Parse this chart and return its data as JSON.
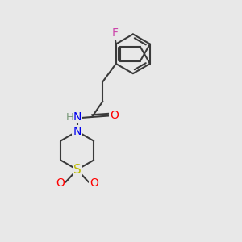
{
  "background_color": "#e8e8e8",
  "bond_color": "#3a3a3a",
  "bond_width": 1.5,
  "atom_colors": {
    "F": "#cc44aa",
    "O": "#ff0000",
    "N": "#0000ee",
    "S": "#bbbb00",
    "H_gray": "#7a9a7a"
  },
  "font_size": 9.5
}
